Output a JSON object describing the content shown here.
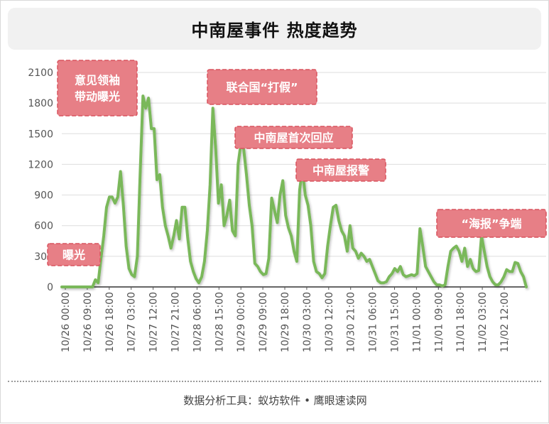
{
  "title": "中南屋事件 热度趋势",
  "footer": "数据分析工具：蚁坊软件 • 鹰眼速读网",
  "colors": {
    "line": "#7ab85a",
    "annotation_fill": "#e77f86",
    "annotation_border": "#d9535e",
    "grid": "#dedede",
    "axis": "#555555"
  },
  "chart_data": {
    "type": "line",
    "title": "中南屋事件 热度趋势",
    "ylim": [
      0,
      2100
    ],
    "yticks": [
      0,
      300,
      600,
      900,
      1200,
      1500,
      1800,
      2100
    ],
    "grid": true,
    "x_tick_labels": [
      "10/26 00:00",
      "10/26 09:00",
      "10/26 18:00",
      "10/27 03:00",
      "10/27 12:00",
      "10/27 21:00",
      "10/28 06:00",
      "10/28 15:00",
      "10/29 00:00",
      "10/29 09:00",
      "10/29 18:00",
      "10/30 03:00",
      "10/30 12:00",
      "10/30 21:00",
      "10/31 06:00",
      "10/31 15:00",
      "11/01 00:00",
      "11/01 09:00",
      "11/01 18:00",
      "11/02 03:00",
      "11/02 12:00"
    ],
    "series": [
      {
        "values": [
          0,
          0,
          0,
          0,
          0,
          0,
          0,
          0,
          0,
          0,
          0,
          0,
          70,
          40,
          280,
          500,
          780,
          880,
          880,
          820,
          880,
          1130,
          800,
          400,
          180,
          120,
          100,
          300,
          1100,
          1870,
          1750,
          1850,
          1550,
          1550,
          1050,
          1100,
          780,
          600,
          500,
          380,
          500,
          650,
          470,
          780,
          780,
          480,
          250,
          150,
          80,
          40,
          100,
          250,
          550,
          1000,
          1750,
          1350,
          820,
          1000,
          600,
          700,
          850,
          550,
          500,
          1200,
          1400,
          1350,
          1100,
          800,
          600,
          230,
          200,
          150,
          120,
          130,
          280,
          870,
          750,
          630,
          900,
          1040,
          700,
          580,
          500,
          350,
          250,
          950,
          1150,
          900,
          800,
          600,
          250,
          150,
          130,
          90,
          130,
          400,
          600,
          780,
          800,
          650,
          550,
          500,
          350,
          600,
          380,
          350,
          280,
          330,
          300,
          250,
          270,
          200,
          130,
          60,
          40,
          40,
          50,
          100,
          130,
          180,
          150,
          200,
          120,
          100,
          110,
          120,
          110,
          130,
          570,
          400,
          200,
          150,
          100,
          50,
          20,
          20,
          10,
          20,
          200,
          350,
          380,
          400,
          350,
          250,
          380,
          200,
          270,
          180,
          150,
          160,
          500,
          350,
          200,
          100,
          50,
          20,
          20,
          50,
          100,
          170,
          150,
          150,
          240,
          230,
          150,
          100,
          0
        ]
      }
    ],
    "annotations": [
      {
        "text": "曝光"
      },
      {
        "text": "意见领袖带动曝光",
        "lines": [
          "意见领袖",
          "带动曝光"
        ]
      },
      {
        "text": "联合国“打假”"
      },
      {
        "text": "中南屋首次回应"
      },
      {
        "text": "中南屋报警"
      },
      {
        "text": "“海报”争端"
      }
    ]
  }
}
